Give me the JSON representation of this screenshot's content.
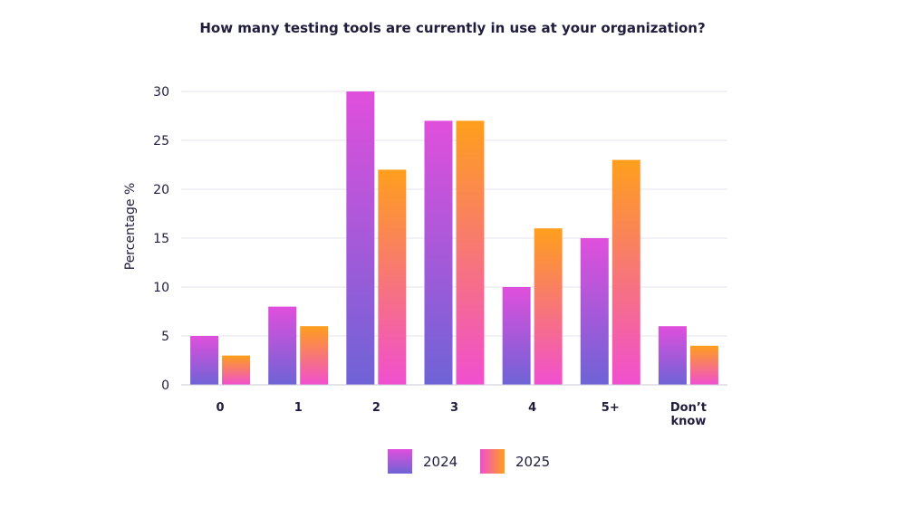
{
  "chart_data": {
    "type": "bar",
    "title": "How many testing tools are currently in use at your organization?",
    "xlabel": "",
    "ylabel": "Percentage %",
    "ylim": [
      0,
      30
    ],
    "yticks": [
      0,
      5,
      10,
      15,
      20,
      25,
      30
    ],
    "grid": true,
    "legend_position": "bottom-center",
    "categories": [
      "0",
      "1",
      "2",
      "3",
      "4",
      "5+",
      "Don’t know"
    ],
    "series": [
      {
        "name": "2024",
        "values": [
          5,
          8,
          30,
          27,
          10,
          15,
          6
        ],
        "color_top": "#e04fdc",
        "color_bottom": "#6e63d6"
      },
      {
        "name": "2025",
        "values": [
          3,
          6,
          22,
          27,
          16,
          23,
          4
        ],
        "color_top": "#ff9f1c",
        "color_bottom": "#f04fd0"
      }
    ]
  }
}
